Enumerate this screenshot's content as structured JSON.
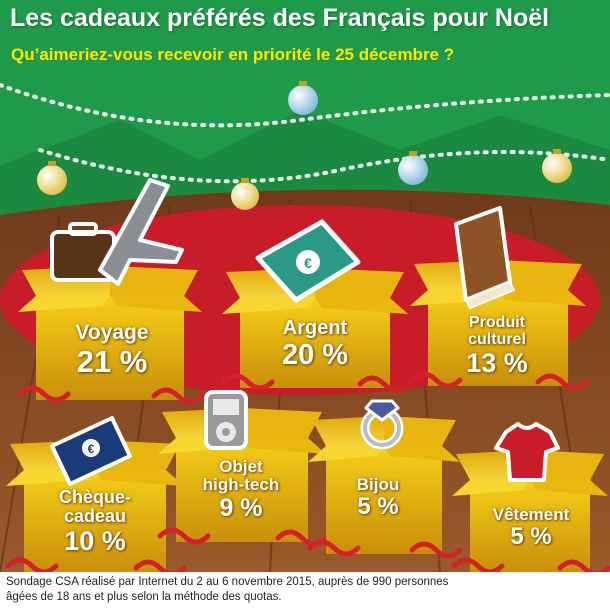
{
  "title": "Les cadeaux préférés des Français pour Noël",
  "subtitle": "Qu’aimeriez-vous recevoir en priorité le 25 décembre ?",
  "footer_lines": [
    "Sondage CSA réalisé par Internet du 2 au 6 novembre 2015, auprès de 990 personnes",
    "âgées de 18 ans et plus selon la méthode des quotas."
  ],
  "colors": {
    "background_green": "#1f9a4a",
    "wood": "#8a4a22",
    "gift_gold": "#f2c40c",
    "ribbon_red": "#d4202a",
    "subtitle_yellow": "#ffe600"
  },
  "chart_data": {
    "type": "bar",
    "categories": [
      "Voyage",
      "Argent",
      "Produit culturel",
      "Chèque-cadeau",
      "Objet high-tech",
      "Bijou",
      "Vêtement"
    ],
    "values": [
      21,
      20,
      13,
      10,
      9,
      5,
      5
    ],
    "value_labels": [
      "21 %",
      "20 %",
      "13 %",
      "10 %",
      "9 %",
      "5 %",
      "5 %"
    ],
    "display_labels": [
      [
        "Voyage"
      ],
      [
        "Argent"
      ],
      [
        "Produit",
        "culturel"
      ],
      [
        "Chèque-",
        "cadeau"
      ],
      [
        "Objet",
        "high-tech"
      ],
      [
        "Bijou"
      ],
      [
        "Vêtement"
      ]
    ],
    "icons": [
      "airplane-suitcase-icon",
      "banknote-icon",
      "book-icon",
      "gift-card-icon",
      "music-player-icon",
      "diamond-ring-icon",
      "tshirt-icon"
    ],
    "unit": "%"
  }
}
